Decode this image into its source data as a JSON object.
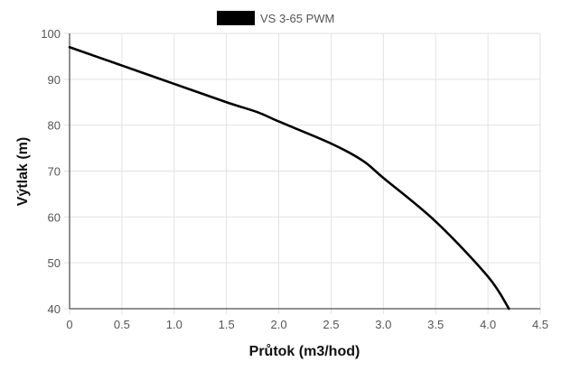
{
  "chart_data": {
    "type": "line",
    "title": "",
    "xlabel": "Průtok (m3/hod)",
    "ylabel": "Výtlak (m)",
    "xlim": [
      0,
      4.5
    ],
    "ylim": [
      40,
      100
    ],
    "x_ticks": [
      "0",
      "0.5",
      "1.0",
      "1.5",
      "2.0",
      "2.5",
      "3.0",
      "3.5",
      "4.0",
      "4.5"
    ],
    "y_ticks": [
      "40",
      "50",
      "60",
      "70",
      "80",
      "90",
      "100"
    ],
    "grid": true,
    "legend_position": "top-center",
    "series": [
      {
        "name": "VS 3-65 PWM",
        "color": "#000000",
        "x": [
          0,
          0.5,
          1.0,
          1.5,
          1.8,
          2.0,
          2.5,
          2.8,
          3.0,
          3.5,
          4.0,
          4.2
        ],
        "y": [
          97,
          93,
          89,
          85,
          82.8,
          80.8,
          76,
          72.3,
          68.5,
          59,
          47,
          40
        ]
      }
    ]
  }
}
